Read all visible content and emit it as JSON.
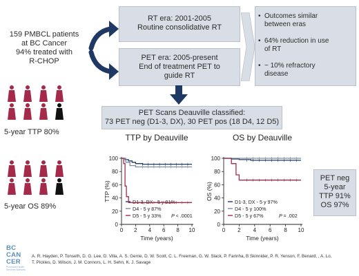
{
  "cohort": {
    "line1": "159 PMBCL patients",
    "line2": "at BC Cancer",
    "line3": "94% treated with",
    "line4": "R-CHOP"
  },
  "rt_era": {
    "line1": "RT era: 2001-2005",
    "line2": "Routine consolidative RT"
  },
  "pet_era": {
    "line1": "PET era: 2005-present",
    "line2": "End of  treatment PET to",
    "line3": "guide RT"
  },
  "outcomes": [
    {
      "line1": "Outcomes similar",
      "line2": "between eras"
    },
    {
      "line1": "64% reduction in use",
      "line2": "of RT"
    },
    {
      "line1": "~ 10% refractory",
      "line2": "disease"
    }
  ],
  "ttp_summary": "5-year TTP 80%",
  "os_summary": "5-year OS 89%",
  "pet_scans": {
    "line1": "PET Scans Deauville classified:",
    "line2": "73 PET neg (D1-3, DX),  30 PET pos (18 D4, 12 D5)"
  },
  "pet_neg_box": {
    "line1": "PET neg",
    "line2": "5-year",
    "line3": "TTP 91%",
    "line4": "OS 97%"
  },
  "colors": {
    "navy": "#1f3864",
    "red": "#a52a4a",
    "box": "#d9dee6",
    "accent": "#5a8ec0"
  },
  "chart_data": [
    {
      "type": "line",
      "title": "TTP by Deauville",
      "xlabel": "Time (years)",
      "ylabel": "TTP (%)",
      "xlim": [
        0,
        10
      ],
      "ylim": [
        0,
        100
      ],
      "xticks": [
        "0",
        "2",
        "4",
        "6",
        "8",
        "10"
      ],
      "yticks": [
        "0",
        "20",
        "40",
        "60",
        "80",
        "100"
      ],
      "p_value": "< .0001",
      "series": [
        {
          "name": "D1-3, DX - 5 y 91%",
          "color": "#1f3864",
          "x": [
            0,
            0.5,
            1.0,
            1.5,
            2.0,
            3.0,
            10
          ],
          "y": [
            100,
            98,
            96,
            94,
            92,
            91,
            91
          ]
        },
        {
          "name": "D4 - 5 y 87%",
          "color": "#7a8aa0",
          "x": [
            0,
            0.6,
            1.2,
            2.0,
            10
          ],
          "y": [
            100,
            94,
            89,
            87,
            87
          ]
        },
        {
          "name": "D5 - 5 y 33%",
          "color": "#a52a4a",
          "x": [
            0,
            0.3,
            0.5,
            0.7,
            1.0,
            2.0,
            10
          ],
          "y": [
            100,
            92,
            58,
            42,
            33,
            33,
            33
          ]
        }
      ]
    },
    {
      "type": "line",
      "title": "OS by Deauville",
      "xlabel": "Time (years)",
      "ylabel": "OS (%)",
      "xlim": [
        0,
        10
      ],
      "ylim": [
        0,
        100
      ],
      "xticks": [
        "0",
        "2",
        "4",
        "6",
        "8",
        "10"
      ],
      "yticks": [
        "0",
        "20",
        "40",
        "60",
        "80",
        "100"
      ],
      "p_value": "= .002",
      "series": [
        {
          "name": "D1-3, DX - 5 y 97%",
          "color": "#1f3864",
          "x": [
            0,
            1.0,
            2.0,
            3.5,
            10
          ],
          "y": [
            100,
            99,
            98,
            97,
            97
          ]
        },
        {
          "name": "D4 - 5 y 100%",
          "color": "#7a8aa0",
          "x": [
            0,
            10
          ],
          "y": [
            100,
            100
          ]
        },
        {
          "name": "D5 - 5 y 67%",
          "color": "#a52a4a",
          "x": [
            0,
            1.0,
            1.6,
            2.0,
            10
          ],
          "y": [
            100,
            92,
            75,
            67,
            67
          ]
        }
      ]
    }
  ],
  "authors": {
    "line1": "A. R. Hayden, P. Tonseth, D. G. Lee, D. Villa, A. S. Gerrie, D. W. Scott, C. L. Freeman, G. W. Slack, P. Farinha, B Skinnider, P. R. Yenson, F. Benard, , A. Lo,",
    "line2": "T. Pickles, D. Wilson, J. M. Connors, L. H. Sehn, K. J. Savage"
  },
  "logo": {
    "line1": "BC",
    "line2": "CAN",
    "line3": "CER",
    "subtitle": "Provincial Health Services Authority"
  }
}
